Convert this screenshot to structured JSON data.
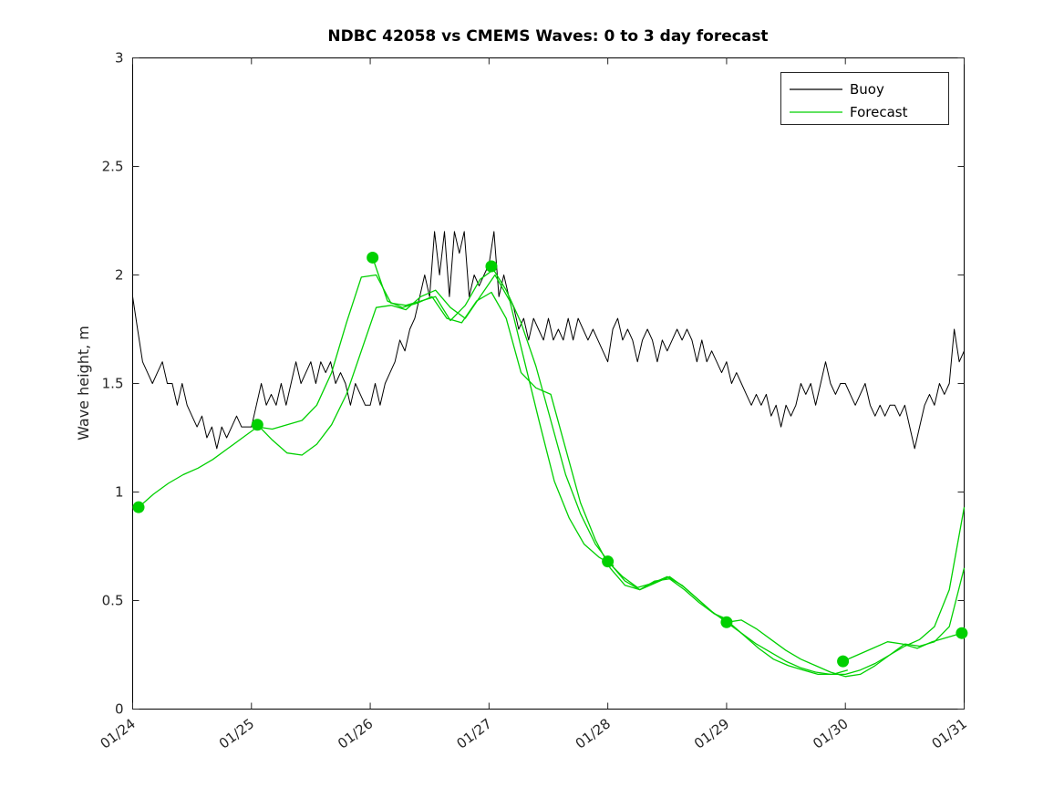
{
  "chart_data": {
    "type": "line",
    "title": "NDBC 42058 vs CMEMS Waves: 0 to 3 day forecast",
    "xlabel": "",
    "ylabel": "Wave height, m",
    "xlim": [
      0,
      7
    ],
    "ylim": [
      0,
      3
    ],
    "grid": false,
    "xticks": [
      0,
      1,
      2,
      3,
      4,
      5,
      6,
      7
    ],
    "xtick_labels": [
      "01/24",
      "01/25",
      "01/26",
      "01/27",
      "01/28",
      "01/29",
      "01/30",
      "01/31"
    ],
    "yticks": [
      0,
      0.5,
      1,
      1.5,
      2,
      2.5,
      3
    ],
    "ytick_labels": [
      "0",
      "0.5",
      "1",
      "1.5",
      "2",
      "2.5",
      "3"
    ],
    "legend": {
      "position": "northeast",
      "entries": [
        {
          "label": "Buoy",
          "color": "#000000"
        },
        {
          "label": "Forecast",
          "color": "#00d000"
        }
      ]
    },
    "series": [
      {
        "name": "buoy",
        "label": "Buoy",
        "color": "#000000",
        "width": 1,
        "x_start": 0,
        "x_step": 0.0416667,
        "values": [
          1.9,
          1.75,
          1.6,
          1.55,
          1.5,
          1.55,
          1.6,
          1.5,
          1.5,
          1.4,
          1.5,
          1.4,
          1.35,
          1.3,
          1.35,
          1.25,
          1.3,
          1.2,
          1.3,
          1.25,
          1.3,
          1.35,
          1.3,
          1.3,
          1.3,
          1.4,
          1.5,
          1.4,
          1.45,
          1.4,
          1.5,
          1.4,
          1.5,
          1.6,
          1.5,
          1.55,
          1.6,
          1.5,
          1.6,
          1.55,
          1.6,
          1.5,
          1.55,
          1.5,
          1.4,
          1.5,
          1.45,
          1.4,
          1.4,
          1.5,
          1.4,
          1.5,
          1.55,
          1.6,
          1.7,
          1.65,
          1.75,
          1.8,
          1.9,
          2.0,
          1.9,
          2.2,
          2.0,
          2.2,
          1.9,
          2.2,
          2.1,
          2.2,
          1.9,
          2.0,
          1.95,
          2.0,
          2.05,
          2.2,
          1.9,
          2.0,
          1.9,
          1.85,
          1.75,
          1.8,
          1.7,
          1.8,
          1.75,
          1.7,
          1.8,
          1.7,
          1.75,
          1.7,
          1.8,
          1.7,
          1.8,
          1.75,
          1.7,
          1.75,
          1.7,
          1.65,
          1.6,
          1.75,
          1.8,
          1.7,
          1.75,
          1.7,
          1.6,
          1.7,
          1.75,
          1.7,
          1.6,
          1.7,
          1.65,
          1.7,
          1.75,
          1.7,
          1.75,
          1.7,
          1.6,
          1.7,
          1.6,
          1.65,
          1.6,
          1.55,
          1.6,
          1.5,
          1.55,
          1.5,
          1.45,
          1.4,
          1.45,
          1.4,
          1.45,
          1.35,
          1.4,
          1.3,
          1.4,
          1.35,
          1.4,
          1.5,
          1.45,
          1.5,
          1.4,
          1.5,
          1.6,
          1.5,
          1.45,
          1.5,
          1.5,
          1.45,
          1.4,
          1.45,
          1.5,
          1.4,
          1.35,
          1.4,
          1.35,
          1.4,
          1.4,
          1.35,
          1.4,
          1.3,
          1.2,
          1.3,
          1.4,
          1.45,
          1.4,
          1.5,
          1.45,
          1.5,
          1.75,
          1.6,
          1.65
        ]
      },
      {
        "name": "forecast-run-0124",
        "label": "Forecast",
        "color": "#00d000",
        "width": 1.3,
        "x_start": 0.05,
        "x_step": 0.125,
        "values": [
          0.93,
          0.99,
          1.04,
          1.08,
          1.11,
          1.15,
          1.2,
          1.25,
          1.3,
          1.29,
          1.31,
          1.33,
          1.4,
          1.55,
          1.78,
          1.99,
          2.0,
          1.87,
          1.86,
          1.88,
          1.9,
          1.79,
          1.86,
          1.98,
          2.03
        ]
      },
      {
        "name": "forecast-run-0125",
        "label": "Forecast",
        "color": "#00d000",
        "width": 1.3,
        "x_start": 1.05,
        "x_step": 0.125,
        "values": [
          1.31,
          1.24,
          1.18,
          1.17,
          1.22,
          1.31,
          1.45,
          1.65,
          1.85,
          1.86,
          1.84,
          1.9,
          1.93,
          1.85,
          1.8,
          1.9,
          2.0,
          1.88,
          1.6,
          1.32,
          1.05,
          0.88,
          0.76,
          0.7,
          0.66
        ]
      },
      {
        "name": "forecast-run-0126",
        "label": "Forecast",
        "color": "#00d000",
        "width": 1.3,
        "x_start": 2.02,
        "x_step": 0.125,
        "values": [
          2.08,
          1.88,
          1.85,
          1.87,
          1.9,
          1.8,
          1.78,
          1.88,
          1.92,
          1.8,
          1.55,
          1.48,
          1.45,
          1.2,
          0.95,
          0.78,
          0.65,
          0.57,
          0.55,
          0.59,
          0.6,
          0.55,
          0.49,
          0.44,
          0.41
        ]
      },
      {
        "name": "forecast-run-0127",
        "label": "Forecast",
        "color": "#00d000",
        "width": 1.3,
        "x_start": 3.02,
        "x_step": 0.125,
        "values": [
          2.04,
          1.93,
          1.78,
          1.58,
          1.33,
          1.08,
          0.9,
          0.76,
          0.67,
          0.59,
          0.55,
          0.58,
          0.61,
          0.56,
          0.5,
          0.44,
          0.4,
          0.34,
          0.28,
          0.23,
          0.2,
          0.18,
          0.16,
          0.16,
          0.18
        ]
      },
      {
        "name": "forecast-run-0128",
        "label": "Forecast",
        "color": "#00d000",
        "width": 1.3,
        "x_start": 4.0,
        "x_step": 0.125,
        "values": [
          0.68,
          0.61,
          0.56,
          0.58,
          0.61,
          0.57,
          0.51,
          0.45,
          0.4,
          0.35,
          0.3,
          0.26,
          0.22,
          0.19,
          0.17,
          0.16,
          0.16,
          0.18,
          0.21,
          0.25,
          0.29,
          0.32,
          0.38,
          0.55,
          0.93
        ]
      },
      {
        "name": "forecast-run-0129",
        "label": "Forecast",
        "color": "#00d000",
        "width": 1.3,
        "x_start": 5.0,
        "x_step": 0.125,
        "values": [
          0.4,
          0.41,
          0.37,
          0.32,
          0.27,
          0.23,
          0.2,
          0.17,
          0.15,
          0.16,
          0.2,
          0.25,
          0.3,
          0.29,
          0.31,
          0.38,
          0.65
        ]
      },
      {
        "name": "forecast-run-0130",
        "label": "Forecast",
        "color": "#00d000",
        "width": 1.3,
        "x_start": 5.98,
        "x_step": 0.125,
        "values": [
          0.22,
          0.25,
          0.28,
          0.31,
          0.3,
          0.28,
          0.31,
          0.33,
          0.35
        ]
      }
    ],
    "markers": {
      "name": "forecast-start-points",
      "color": "#00d000",
      "radius": 6.5,
      "points": [
        [
          0.05,
          0.93
        ],
        [
          1.05,
          1.31
        ],
        [
          2.02,
          2.08
        ],
        [
          3.02,
          2.04
        ],
        [
          4.0,
          0.68
        ],
        [
          5.0,
          0.4
        ],
        [
          5.98,
          0.22
        ],
        [
          6.98,
          0.35
        ]
      ]
    }
  }
}
